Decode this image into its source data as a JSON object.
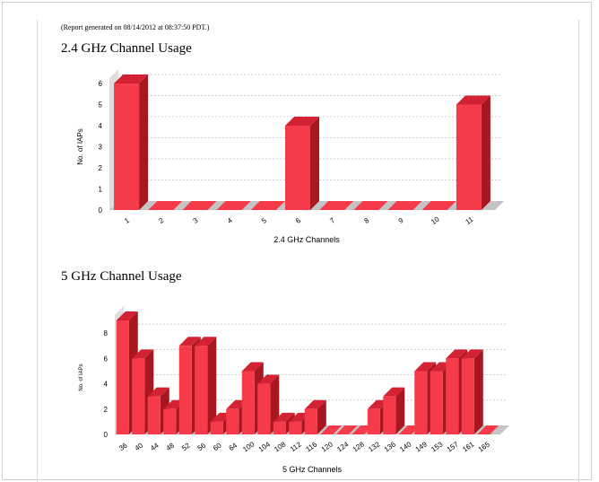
{
  "report_note": "(Report generated on 08/14/2012 at 08:37:50 PDT.)",
  "colors": {
    "bar_front": "#f53a4a",
    "bar_side": "#a8161f",
    "bar_top": "#d22233",
    "grid": "#cccccc",
    "floor": "#c4c4c4"
  },
  "chart_data": [
    {
      "type": "bar",
      "title": "2.4 GHz Channel Usage",
      "xlabel": "2.4 GHz Channels",
      "ylabel": "No. of IAPs",
      "ylim": [
        0,
        6
      ],
      "yticks": [
        "0",
        "1",
        "2",
        "3",
        "4",
        "5",
        "6"
      ],
      "categories": [
        "1",
        "2",
        "3",
        "4",
        "5",
        "6",
        "7",
        "8",
        "9",
        "10",
        "11"
      ],
      "values": [
        6,
        0,
        0,
        0,
        0,
        4,
        0,
        0,
        0,
        0,
        5
      ],
      "grid": true
    },
    {
      "type": "bar",
      "title": "5 GHz Channel Usage",
      "xlabel": "5 GHz Channels",
      "ylabel": "No. of IAPs",
      "ylim": [
        0,
        9
      ],
      "yticks": [
        "0",
        "2",
        "4",
        "6",
        "8"
      ],
      "categories": [
        "36",
        "40",
        "44",
        "48",
        "52",
        "56",
        "60",
        "64",
        "100",
        "104",
        "108",
        "112",
        "116",
        "120",
        "124",
        "128",
        "132",
        "136",
        "140",
        "149",
        "153",
        "157",
        "161",
        "165"
      ],
      "values": [
        9,
        6,
        3,
        2,
        7,
        7,
        1,
        2,
        5,
        4,
        1,
        1,
        2,
        0,
        0,
        0,
        2,
        3,
        0,
        5,
        5,
        6,
        6,
        0
      ],
      "grid": true
    }
  ]
}
